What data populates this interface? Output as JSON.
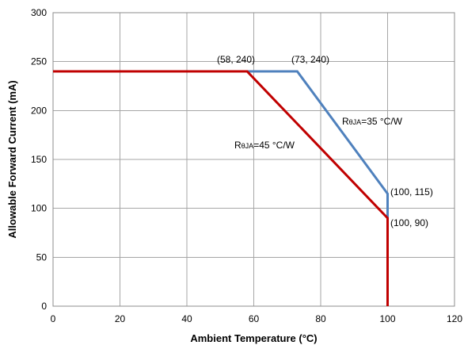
{
  "chart_data": {
    "type": "line",
    "title": "",
    "xlabel": "Ambient Temperature (°C)",
    "ylabel": "Allowable Forward Current (mA)",
    "xlim": [
      0,
      120
    ],
    "ylim": [
      0,
      300
    ],
    "xticks": [
      0,
      20,
      40,
      60,
      80,
      100,
      120
    ],
    "yticks": [
      0,
      50,
      100,
      150,
      200,
      250,
      300
    ],
    "grid": true,
    "series": [
      {
        "label_main": "R",
        "label_sub": "θJA",
        "label_rest": "=35 °C/W",
        "color": "#4f81bd",
        "points": [
          [
            0,
            240
          ],
          [
            73,
            240
          ],
          [
            100,
            115
          ],
          [
            100,
            0
          ]
        ]
      },
      {
        "label_main": "R",
        "label_sub": "θJA",
        "label_rest": "=45 °C/W",
        "color": "#c00000",
        "points": [
          [
            0,
            240
          ],
          [
            58,
            240
          ],
          [
            100,
            90
          ],
          [
            100,
            0
          ]
        ]
      }
    ],
    "annotations": [
      {
        "text": "(58, 240)"
      },
      {
        "text": "(73, 240)"
      },
      {
        "text": "(100, 115)"
      },
      {
        "text": "(100, 90)"
      }
    ]
  }
}
